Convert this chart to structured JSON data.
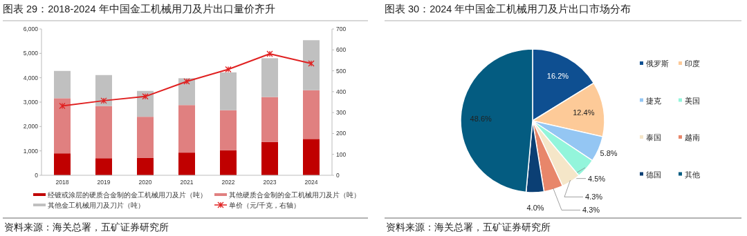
{
  "chart_data": [
    {
      "type": "bar",
      "title": "图表 29：2018-2024 年中国金工机械用刀及片出口量价齐升",
      "stacked": true,
      "categories": [
        "2018",
        "2019",
        "2020",
        "2021",
        "2022",
        "2023",
        "2024"
      ],
      "series": [
        {
          "name": "经镀或涂层的硬质合金制的金工机械用刀及片（吨）",
          "color": "#c00000",
          "values": [
            900,
            700,
            720,
            930,
            1030,
            1370,
            1490
          ]
        },
        {
          "name": "其他硬质合金制的金工机械用刀及片（吨）",
          "color": "#e08080",
          "values": [
            2260,
            2140,
            1680,
            1950,
            1640,
            1840,
            2000
          ]
        },
        {
          "name": "其他金工机械用刀及刀片（吨）",
          "color": "#c0c0c0",
          "values": [
            1120,
            1270,
            1060,
            1100,
            1550,
            1590,
            2050
          ]
        },
        {
          "name": "单价（元/千克，右轴）",
          "type": "line",
          "axis": "y2",
          "color": "#e02020",
          "marker": "cross",
          "line_style": "solid",
          "values": [
            332,
            357,
            377,
            449,
            507,
            581,
            535
          ]
        }
      ],
      "ylim": [
        0,
        6000
      ],
      "yticks": [
        0,
        {
          "value": 1000,
          "label": "1,000"
        },
        {
          "value": 2000,
          "label": "2,000"
        },
        {
          "value": 3000,
          "label": "3,000"
        },
        {
          "value": 4000,
          "label": "4,000"
        },
        {
          "value": 5000,
          "label": "5,000"
        },
        {
          "value": 6000,
          "label": "6,000"
        }
      ],
      "y2lim": [
        0,
        700
      ],
      "y2ticks": [
        0,
        100,
        200,
        300,
        400,
        500,
        600,
        700
      ],
      "grid": false,
      "legend": "bottom",
      "annotations": [
        "资料来源：海关总署，五矿证券研究所"
      ]
    },
    {
      "type": "pie",
      "title": "图表 30：2024 年中国金工机械用刀及片出口市场分布",
      "categories": [
        "俄罗斯",
        "印度",
        "捷克",
        "美国",
        "泰国",
        "越南",
        "德国",
        "其他"
      ],
      "values": [
        16.2,
        12.4,
        5.8,
        4.5,
        4.3,
        4.3,
        4.0,
        48.6
      ],
      "colors": [
        "#0e4f91",
        "#fdca98",
        "#94c6f3",
        "#93f5db",
        "#f5e6c8",
        "#e8866a",
        "#0b3f74",
        "#045c81"
      ],
      "value_labels": [
        "16.2%",
        "12.4%",
        "5.8%",
        "4.5%",
        "4.3%",
        "4.3%",
        "4.0%",
        "48.6%"
      ],
      "legend": "right",
      "annotations": [
        "资料来源：海关总署，五矿证券研究所"
      ]
    }
  ]
}
